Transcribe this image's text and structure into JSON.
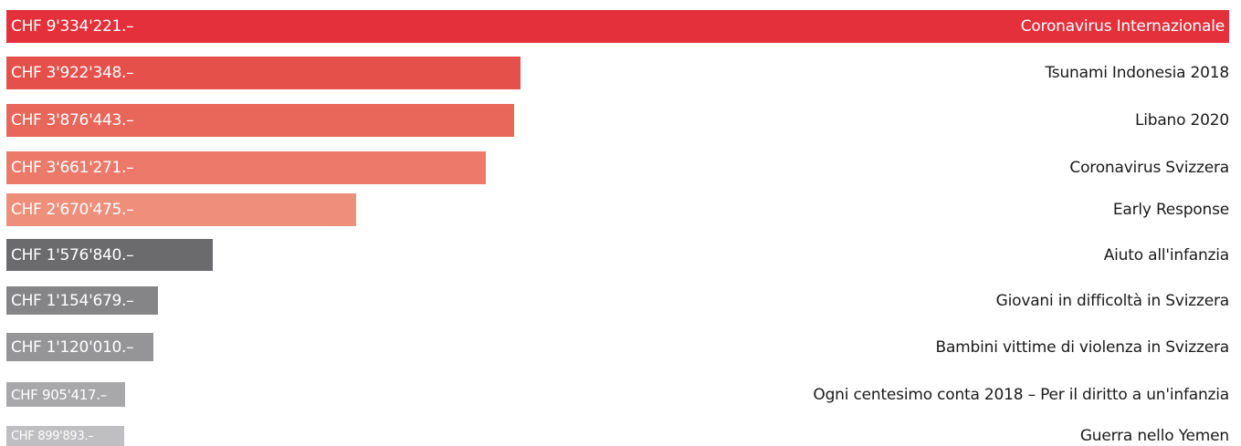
{
  "chart_data": {
    "type": "bar",
    "orientation": "horizontal",
    "title": "",
    "xlabel": "",
    "ylabel": "",
    "categories": [
      "Coronavirus Internazionale",
      "Tsunami Indonesia 2018",
      "Libano 2020",
      "Coronavirus Svizzera",
      "Early Response",
      "Aiuto all'infanzia",
      "Giovani in difficoltà in Svizzera",
      "Bambini vittime di violenza in Svizzera",
      "Ogni centesimo conta 2018 – Per il diritto a un'infanzia",
      "Guerra nello Yemen"
    ],
    "values": [
      9334221,
      3922348,
      3876443,
      3661271,
      2670475,
      1576840,
      1154679,
      1120010,
      905417,
      899893
    ],
    "value_labels": [
      "CHF 9'334'221.–",
      "CHF 3'922'348.–",
      "CHF 3'876'443.–",
      "CHF 3'661'271.–",
      "CHF 2'670'475.–",
      "CHF 1'576'840.–",
      "CHF 1'154'679.–",
      "CHF 1'120'010.–",
      "CHF 905'417.–",
      "CHF 899'893.–"
    ],
    "colors": [
      "#e3303a",
      "#e6504b",
      "#e9665a",
      "#ec7a6a",
      "#ee8f7c",
      "#6b6b6e",
      "#858587",
      "#959597",
      "#a8a8aa",
      "#bfbfc1"
    ],
    "xlim": [
      0,
      9334221
    ],
    "grid": false,
    "legend": "none"
  }
}
